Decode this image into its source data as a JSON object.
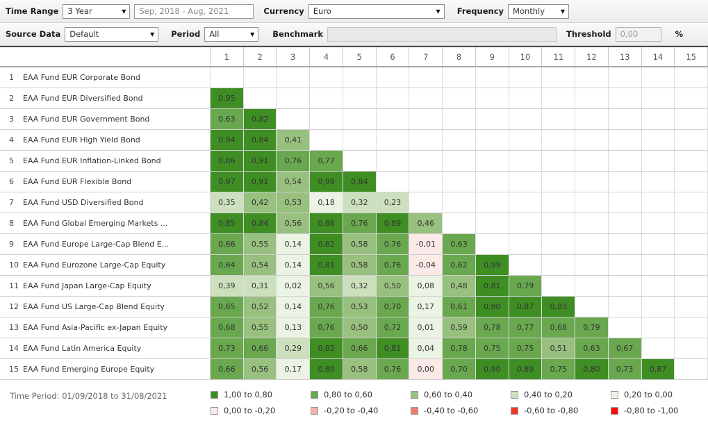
{
  "toolbar": {
    "row1": {
      "time_range_label": "Time Range",
      "time_range_value": "3 Year",
      "date_range_value": "Sep, 2018 - Aug, 2021",
      "currency_label": "Currency",
      "currency_value": "Euro",
      "frequency_label": "Frequency",
      "frequency_value": "Monthly"
    },
    "row2": {
      "source_data_label": "Source Data",
      "source_data_value": "Default",
      "period_label": "Period",
      "period_value": "All",
      "benchmark_label": "Benchmark",
      "benchmark_value": "",
      "threshold_label": "Threshold",
      "threshold_value": "0,00",
      "threshold_unit": "%"
    },
    "icons": {
      "dropdown_arrow": "▼"
    }
  },
  "matrix": {
    "column_headers": [
      "1",
      "2",
      "3",
      "4",
      "5",
      "6",
      "7",
      "8",
      "9",
      "10",
      "11",
      "12",
      "13",
      "14",
      "15"
    ],
    "rows": [
      {
        "num": "1",
        "name": "EAA Fund EUR Corporate Bond",
        "values": []
      },
      {
        "num": "2",
        "name": "EAA Fund EUR Diversified Bond",
        "values": [
          "0,95"
        ]
      },
      {
        "num": "3",
        "name": "EAA Fund EUR Government Bond",
        "values": [
          "0,63",
          "0,82"
        ]
      },
      {
        "num": "4",
        "name": "EAA Fund EUR High Yield Bond",
        "values": [
          "0,94",
          "0,84",
          "0,41"
        ]
      },
      {
        "num": "5",
        "name": "EAA Fund EUR Inflation-Linked Bond",
        "values": [
          "0,86",
          "0,91",
          "0,76",
          "0,77"
        ]
      },
      {
        "num": "6",
        "name": "EAA Fund EUR Flexible Bond",
        "values": [
          "0,97",
          "0,91",
          "0,54",
          "0,98",
          "0,84"
        ]
      },
      {
        "num": "7",
        "name": "EAA Fund USD Diversified Bond",
        "values": [
          "0,35",
          "0,42",
          "0,53",
          "0,18",
          "0,32",
          "0,23"
        ]
      },
      {
        "num": "8",
        "name": "EAA Fund Global Emerging Markets ...",
        "values": [
          "0,85",
          "0,84",
          "0,56",
          "0,86",
          "0,76",
          "0,89",
          "0,46"
        ]
      },
      {
        "num": "9",
        "name": "EAA Fund Europe Large-Cap Blend E...",
        "values": [
          "0,66",
          "0,55",
          "0,14",
          "0,82",
          "0,58",
          "0,76",
          "-0,01",
          "0,63"
        ]
      },
      {
        "num": "10",
        "name": "EAA Fund Eurozone Large-Cap Equity",
        "values": [
          "0,64",
          "0,54",
          "0,14",
          "0,81",
          "0,58",
          "0,76",
          "-0,04",
          "0,62",
          "0,99"
        ]
      },
      {
        "num": "11",
        "name": "EAA Fund Japan Large-Cap Equity",
        "values": [
          "0,39",
          "0,31",
          "0,02",
          "0,56",
          "0,32",
          "0,50",
          "0,08",
          "0,48",
          "0,81",
          "0,79"
        ]
      },
      {
        "num": "12",
        "name": "EAA Fund US Large-Cap Blend Equity",
        "values": [
          "0,65",
          "0,52",
          "0,14",
          "0,76",
          "0,53",
          "0,70",
          "0,17",
          "0,61",
          "0,90",
          "0,87",
          "0,83"
        ]
      },
      {
        "num": "13",
        "name": "EAA Fund Asia-Pacific ex-Japan Equity",
        "values": [
          "0,68",
          "0,55",
          "0,13",
          "0,76",
          "0,50",
          "0,72",
          "0,01",
          "0,59",
          "0,78",
          "0,77",
          "0,68",
          "0,79"
        ]
      },
      {
        "num": "14",
        "name": "EAA Fund Latin America Equity",
        "values": [
          "0,73",
          "0,66",
          "0,29",
          "0,82",
          "0,66",
          "0,81",
          "0,04",
          "0,78",
          "0,75",
          "0,75",
          "0,51",
          "0,63",
          "0,67"
        ]
      },
      {
        "num": "15",
        "name": "EAA Fund Emerging Europe Equity",
        "values": [
          "0,66",
          "0,56",
          "0,17",
          "0,80",
          "0,58",
          "0,76",
          "0,00",
          "0,70",
          "0,90",
          "0,89",
          "0,75",
          "0,80",
          "0,73",
          "0,87"
        ]
      }
    ]
  },
  "footer": {
    "time_period": "Time Period: 01/09/2018 to 31/08/2021",
    "legend": [
      {
        "label": "1,00 to 0,80",
        "color": "#3f8e24"
      },
      {
        "label": "0,80 to 0,60",
        "color": "#69a84e"
      },
      {
        "label": "0,60 to 0,40",
        "color": "#98c07f"
      },
      {
        "label": "0,40 to 0,20",
        "color": "#cce0be"
      },
      {
        "label": "0,20 to 0,00",
        "color": "#ebf3e4"
      },
      {
        "label": "0,00 to -0,20",
        "color": "#fceae8"
      },
      {
        "label": "-0,20 to -0,40",
        "color": "#f5b1ab"
      },
      {
        "label": "-0,40 to -0,60",
        "color": "#f0796d"
      },
      {
        "label": "-0,60 to -0,80",
        "color": "#ed3a28"
      },
      {
        "label": "-0,80 to -1,00",
        "color": "#fd0d00"
      }
    ]
  },
  "chart_data": {
    "type": "heatmap",
    "title": "Correlation matrix, EAA fund categories, 01/09/2018 to 31/08/2021",
    "categories": [
      "EAA Fund EUR Corporate Bond",
      "EAA Fund EUR Diversified Bond",
      "EAA Fund EUR Government Bond",
      "EAA Fund EUR High Yield Bond",
      "EAA Fund EUR Inflation-Linked Bond",
      "EAA Fund EUR Flexible Bond",
      "EAA Fund USD Diversified Bond",
      "EAA Fund Global Emerging Markets ...",
      "EAA Fund Europe Large-Cap Blend E...",
      "EAA Fund Eurozone Large-Cap Equity",
      "EAA Fund Japan Large-Cap Equity",
      "EAA Fund US Large-Cap Blend Equity",
      "EAA Fund Asia-Pacific ex-Japan Equity",
      "EAA Fund Latin America Equity",
      "EAA Fund Emerging Europe Equity"
    ],
    "lower_triangle_values": [
      [],
      [
        0.95
      ],
      [
        0.63,
        0.82
      ],
      [
        0.94,
        0.84,
        0.41
      ],
      [
        0.86,
        0.91,
        0.76,
        0.77
      ],
      [
        0.97,
        0.91,
        0.54,
        0.98,
        0.84
      ],
      [
        0.35,
        0.42,
        0.53,
        0.18,
        0.32,
        0.23
      ],
      [
        0.85,
        0.84,
        0.56,
        0.86,
        0.76,
        0.89,
        0.46
      ],
      [
        0.66,
        0.55,
        0.14,
        0.82,
        0.58,
        0.76,
        -0.01,
        0.63
      ],
      [
        0.64,
        0.54,
        0.14,
        0.81,
        0.58,
        0.76,
        -0.04,
        0.62,
        0.99
      ],
      [
        0.39,
        0.31,
        0.02,
        0.56,
        0.32,
        0.5,
        0.08,
        0.48,
        0.81,
        0.79
      ],
      [
        0.65,
        0.52,
        0.14,
        0.76,
        0.53,
        0.7,
        0.17,
        0.61,
        0.9,
        0.87,
        0.83
      ],
      [
        0.68,
        0.55,
        0.13,
        0.76,
        0.5,
        0.72,
        0.01,
        0.59,
        0.78,
        0.77,
        0.68,
        0.79
      ],
      [
        0.73,
        0.66,
        0.29,
        0.82,
        0.66,
        0.81,
        0.04,
        0.78,
        0.75,
        0.75,
        0.51,
        0.63,
        0.67
      ],
      [
        0.66,
        0.56,
        0.17,
        0.8,
        0.58,
        0.76,
        0.0,
        0.7,
        0.9,
        0.89,
        0.75,
        0.8,
        0.73,
        0.87
      ]
    ],
    "value_range": [
      -1.0,
      1.0
    ],
    "bucket_size": 0.2,
    "legend_position": "bottom"
  }
}
